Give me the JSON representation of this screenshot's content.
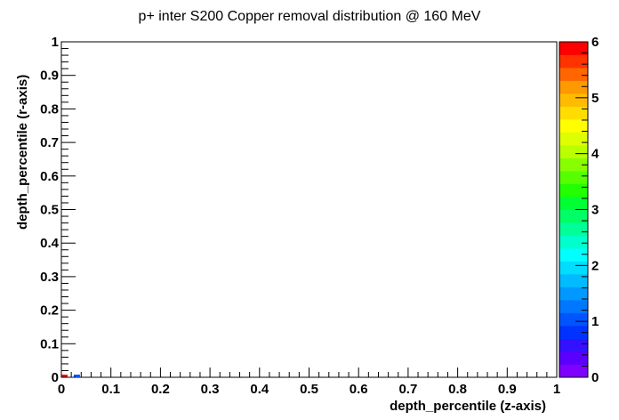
{
  "chart_data": {
    "type": "heatmap",
    "title": "p+ inter S200 Copper removal distribution @ 160 MeV",
    "xlabel": "depth_percentile (z-axis)",
    "ylabel": "depth_percentile (r-axis)",
    "xlim": [
      0,
      1
    ],
    "ylim": [
      0,
      1
    ],
    "zlim": [
      0,
      6
    ],
    "x_ticks": [
      "0",
      "0.1",
      "0.2",
      "0.3",
      "0.4",
      "0.5",
      "0.6",
      "0.7",
      "0.8",
      "0.9",
      "1"
    ],
    "y_ticks": [
      "0",
      "0.1",
      "0.2",
      "0.3",
      "0.4",
      "0.5",
      "0.6",
      "0.7",
      "0.8",
      "0.9",
      "1"
    ],
    "z_ticks": [
      "0",
      "1",
      "2",
      "3",
      "4",
      "5",
      "6"
    ],
    "bin_width": 0.0125,
    "bin_height": 0.008,
    "cells": [
      {
        "x": 0.0,
        "y": 0.0,
        "value": 6
      },
      {
        "x": 0.025,
        "y": 0.0,
        "value": 1
      }
    ],
    "palette": [
      "#7f00ff",
      "#5a00ff",
      "#3311ff",
      "#0033ff",
      "#0055ff",
      "#0077ff",
      "#0099ff",
      "#00bbff",
      "#00ddff",
      "#00ffff",
      "#00ffcc",
      "#00ff99",
      "#00ff66",
      "#00ff33",
      "#22ff00",
      "#55ff00",
      "#88ff00",
      "#bbff00",
      "#ddff00",
      "#ffff00",
      "#ffdd00",
      "#ffbb00",
      "#ff9900",
      "#ff6600",
      "#ff3300",
      "#ff0000"
    ]
  }
}
